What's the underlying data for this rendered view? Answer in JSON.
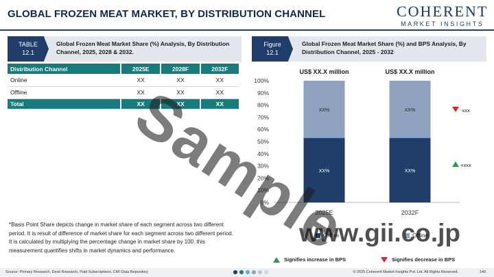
{
  "page_title": "GLOBAL FROZEN MEAT MARKET, BY DISTRIBUTION CHANNEL",
  "logo": {
    "main": "COHERENT",
    "sub": "MARKET INSIGHTS"
  },
  "table_caption": {
    "tag_line1": "TABLE",
    "tag_line2": "12.1",
    "text": "Global Frozen Meat Market Share (%) Analysis, By Distribution Channel, 2025, 2028 & 2032."
  },
  "figure_caption": {
    "tag_line1": "Figure",
    "tag_line2": "12.1",
    "text": "Global Frozen Meat Market Share (%) and BPS Analysis, By Distribution Channel, 2025 - 2032"
  },
  "table": {
    "headers": [
      "Distribution Channel",
      "2025E",
      "2028F",
      "2032F"
    ],
    "rows": [
      [
        "Online",
        "XX",
        "XX",
        "XX"
      ],
      [
        "Offline",
        "XX",
        "XX",
        "XX"
      ]
    ],
    "total": [
      "Total",
      "XX",
      "XX",
      "XX"
    ]
  },
  "note": "*Basis Point Share depicts change in market share of each segment across two different period. It is result of difference of market share for each segment across two different period. It is calculated by multiplying the percentage change in market share by 100. this measurement quantifies shifts in market dynamics and performance.",
  "chart_data": {
    "type": "bar",
    "stacked": true,
    "categories": [
      "2025E",
      "2032F"
    ],
    "bar_titles": [
      "US$ XX.X million",
      "US$ XX.X million"
    ],
    "series": [
      {
        "name": "Online",
        "values": [
          53,
          53
        ],
        "labels": [
          "XX%",
          "XX%"
        ],
        "color": "#1f3e6a"
      },
      {
        "name": "Offline",
        "values": [
          47,
          47
        ],
        "labels": [
          "XX%",
          "XX%"
        ],
        "color": "#8fa3c0"
      }
    ],
    "yticks": [
      "0%",
      "10%",
      "20%",
      "30%",
      "40%",
      "50%",
      "60%",
      "70%",
      "80%",
      "90%",
      "100%"
    ],
    "ylim": [
      0,
      100
    ],
    "bps_indicators": [
      {
        "direction": "down",
        "label": "-xxx",
        "series": "Offline"
      },
      {
        "direction": "up",
        "label": "+xxx",
        "series": "Online"
      }
    ],
    "legend": [
      "Online",
      "Offline"
    ],
    "signifier_up": "Signifies increase in BPS",
    "signifier_down": "Signifies decrease in BPS"
  },
  "footer": {
    "source": "Source: Primary Research, Desk Research, Paid Subscriptions, CMI Data Repository",
    "copyright": "© 2025 Coherent Market Insights Pvt. Ltd. All Rights Reserved.",
    "page": "140"
  },
  "watermark": "Sample",
  "watermark2": "www.gii.co.jp",
  "colors": {
    "navy": "#1f3e6a",
    "teal": "#157c7c",
    "light_bar": "#8fa3c0",
    "up": "#2e9a4a",
    "down": "#d6282a"
  }
}
